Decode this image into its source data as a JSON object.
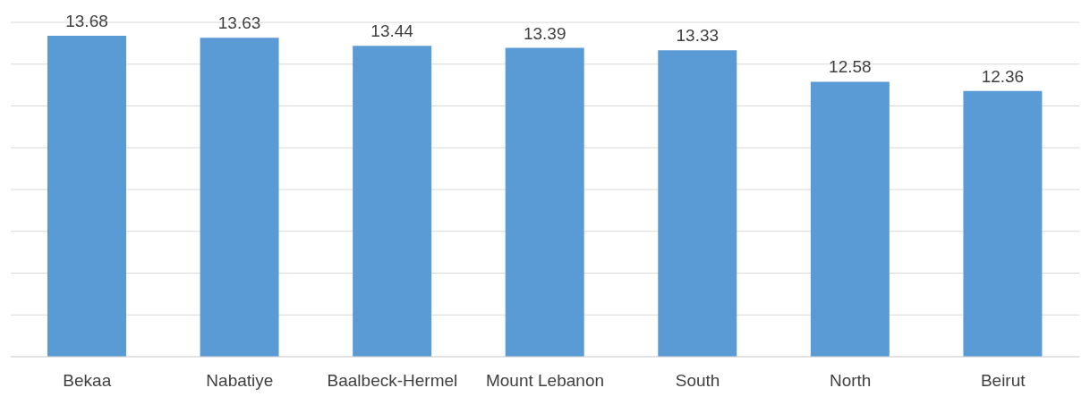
{
  "chart_data": {
    "type": "bar",
    "categories": [
      "Bekaa",
      "Nabatiye",
      "Baalbeck-Hermel",
      "Mount Lebanon",
      "South",
      "North",
      "Beirut"
    ],
    "values": [
      13.68,
      13.63,
      13.44,
      13.39,
      13.33,
      12.58,
      12.36
    ],
    "color": "#5b9bd5",
    "ylim": [
      6,
      14
    ],
    "yticks": [
      {
        "value": 6,
        "label": null
      },
      {
        "value": 7,
        "label": null
      },
      {
        "value": 8,
        "label": null
      },
      {
        "value": 9,
        "label": null
      },
      {
        "value": 10,
        "label": null
      },
      {
        "value": 11,
        "label": null
      },
      {
        "value": 12,
        "label": null
      },
      {
        "value": 13,
        "label": null
      },
      {
        "value": 14,
        "label": null
      }
    ],
    "grid": "y",
    "tick_labels": "x",
    "data_labels": true,
    "legend": false
  }
}
